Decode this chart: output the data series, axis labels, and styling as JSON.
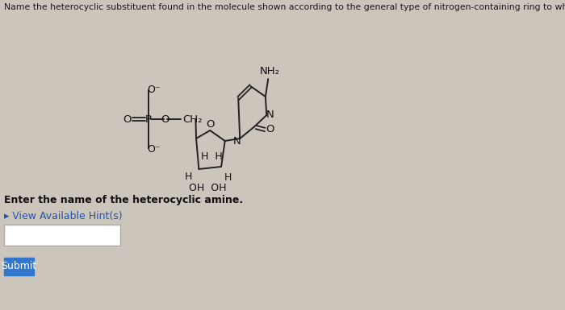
{
  "background_color": "#ccc5bc",
  "title_text": "Name the heterocyclic substituent found in the molecule shown according to the general type of nitrogen-containing ring to which it belongs.",
  "title_fontsize": 7.8,
  "title_color": "#1a1a1a",
  "prompt_text": "Enter the name of the heterocyclic amine.",
  "prompt_fontsize": 9,
  "hint_text": "▸ View Available Hint(s)",
  "hint_color": "#2255aa",
  "hint_fontsize": 9,
  "submit_label": "Submit",
  "submit_bg": "#3377cc",
  "submit_fg": "#ffffff"
}
